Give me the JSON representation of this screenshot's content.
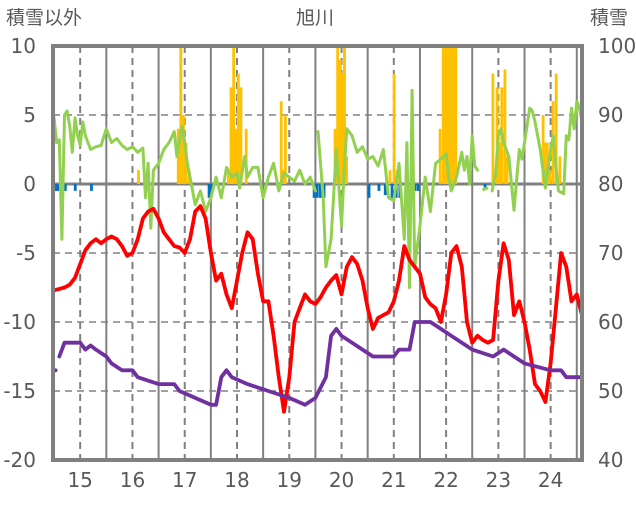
{
  "chart_data": {
    "type": "bar+line",
    "title": "旭川",
    "ylabel_left": "積雪以外",
    "ylabel_right": "積雪",
    "xlim": [
      14.48,
      24.6
    ],
    "ylim_left": [
      -20,
      10
    ],
    "ylim_right": [
      40,
      100
    ],
    "x_ticks": [
      "15",
      "16",
      "17",
      "18",
      "19",
      "20",
      "21",
      "22",
      "23",
      "24"
    ],
    "x_tick_values": [
      15,
      16,
      17,
      18,
      19,
      20,
      21,
      22,
      23,
      24
    ],
    "y_ticks_left": [
      "10",
      "5",
      "0",
      "-5",
      "-10",
      "-15",
      "-20"
    ],
    "y_tick_values_left": [
      10,
      5,
      0,
      -5,
      -10,
      -15,
      -20
    ],
    "y_ticks_right": [
      "100",
      "90",
      "80",
      "70",
      "60",
      "50",
      "40"
    ],
    "grid": true,
    "colors": {
      "red": "#ff0000",
      "purple": "#7030a0",
      "green": "#92d050",
      "orange": "#ffc000",
      "blue": "#0070c0",
      "axis": "#808080"
    },
    "bars_orange": [
      [
        16.11,
        1
      ],
      [
        16.87,
        4
      ],
      [
        16.92,
        10
      ],
      [
        16.97,
        5
      ],
      [
        17.02,
        3
      ],
      [
        17.08,
        1
      ],
      [
        17.83,
        1
      ],
      [
        17.88,
        7
      ],
      [
        17.93,
        10
      ],
      [
        17.98,
        4
      ],
      [
        18.02,
        8
      ],
      [
        18.07,
        7
      ],
      [
        18.17,
        4
      ],
      [
        18.84,
        6
      ],
      [
        18.88,
        1
      ],
      [
        18.92,
        5
      ],
      [
        19.87,
        4
      ],
      [
        19.92,
        10
      ],
      [
        19.97,
        9
      ],
      [
        20.01,
        8
      ],
      [
        20.05,
        10
      ],
      [
        20.09,
        2
      ],
      [
        20.92,
        1
      ],
      [
        21.0,
        8
      ],
      [
        21.06,
        1
      ],
      [
        21.88,
        4
      ],
      [
        21.94,
        10
      ],
      [
        21.98,
        10
      ],
      [
        22.02,
        10
      ],
      [
        22.06,
        10
      ],
      [
        22.1,
        10
      ],
      [
        22.14,
        10
      ],
      [
        22.18,
        10
      ],
      [
        22.89,
        8
      ],
      [
        22.97,
        7
      ],
      [
        23.01,
        3
      ],
      [
        23.06,
        7
      ],
      [
        23.12,
        8.3
      ],
      [
        23.16,
        2
      ],
      [
        23.85,
        5
      ],
      [
        23.89,
        3
      ],
      [
        23.93,
        3
      ],
      [
        23.98,
        1
      ],
      [
        24.04,
        6
      ],
      [
        24.1,
        8
      ],
      [
        24.17,
        2
      ]
    ],
    "bars_blue": [
      [
        14.54,
        -0.5
      ],
      [
        14.58,
        -0.5
      ],
      [
        14.71,
        -0.5
      ],
      [
        14.9,
        -0.5
      ],
      [
        15.21,
        -0.5
      ],
      [
        17.46,
        -1
      ],
      [
        17.5,
        -1
      ],
      [
        19.47,
        -1
      ],
      [
        19.53,
        -1
      ],
      [
        19.59,
        -1
      ],
      [
        19.66,
        -1
      ],
      [
        20.52,
        -1
      ],
      [
        20.71,
        -0.5
      ],
      [
        20.83,
        -0.8
      ],
      [
        20.87,
        -0.8
      ],
      [
        20.96,
        -1
      ],
      [
        21.04,
        -1
      ],
      [
        21.11,
        -1
      ],
      [
        21.4,
        -0.5
      ],
      [
        21.46,
        -0.5
      ],
      [
        22.74,
        -0.3
      ]
    ],
    "series_green": [
      [
        [
          14.5,
          4.8
        ],
        [
          14.55,
          3.0
        ],
        [
          14.6,
          3.2
        ],
        [
          14.65,
          -4
        ],
        [
          14.7,
          5.0
        ],
        [
          14.75,
          5.3
        ],
        [
          14.8,
          4.2
        ],
        [
          14.85,
          2.3
        ],
        [
          14.9,
          4.8
        ],
        [
          14.95,
          3.5
        ],
        [
          15.0,
          2.8
        ],
        [
          15.05,
          4.5
        ],
        [
          15.1,
          3.5
        ],
        [
          15.2,
          2.5
        ],
        [
          15.3,
          2.7
        ],
        [
          15.4,
          2.8
        ],
        [
          15.5,
          4.0
        ],
        [
          15.6,
          3.0
        ],
        [
          15.7,
          3.3
        ],
        [
          15.8,
          2.8
        ],
        [
          15.9,
          2.5
        ],
        [
          16.0,
          2.7
        ],
        [
          16.1,
          2.3
        ],
        [
          16.2,
          2.6
        ],
        [
          16.25,
          -1
        ],
        [
          16.3,
          1.5
        ],
        [
          16.35,
          -3.2
        ],
        [
          16.4,
          1.0
        ],
        [
          16.5,
          1.5
        ],
        [
          16.6,
          2.5
        ],
        [
          16.7,
          3.0
        ],
        [
          16.8,
          3.8
        ],
        [
          16.85,
          2.0
        ],
        [
          16.95,
          4.2
        ],
        [
          17.0,
          3.0
        ],
        [
          17.05,
          1.5
        ],
        [
          17.1,
          0.5
        ],
        [
          17.2,
          -1.5
        ],
        [
          17.3,
          -0.5
        ],
        [
          17.4,
          -2.0
        ],
        [
          17.5,
          -1.0
        ],
        [
          17.6,
          0.5
        ],
        [
          17.7,
          -1.0
        ],
        [
          17.8,
          1.2
        ],
        [
          17.9,
          0.5
        ],
        [
          18.0,
          0.8
        ],
        [
          18.05,
          -0.3
        ],
        [
          18.15,
          2.0
        ],
        [
          18.2,
          0.5
        ],
        [
          18.3,
          1.2
        ],
        [
          18.4,
          1.2
        ],
        [
          18.5,
          -1.0
        ],
        [
          18.6,
          0.5
        ],
        [
          18.7,
          1.5
        ],
        [
          18.8,
          -0.5
        ],
        [
          18.9,
          0.8
        ],
        [
          19.0,
          0.5
        ],
        [
          19.1,
          0.2
        ],
        [
          19.2,
          1.0
        ],
        [
          19.3,
          0
        ],
        [
          19.4,
          0.5
        ],
        [
          19.5,
          -0.5
        ]
      ],
      [
        [
          19.55,
          3.8
        ],
        [
          19.65,
          -1
        ],
        [
          19.7,
          -6
        ],
        [
          19.8,
          -4
        ],
        [
          19.9,
          2.5
        ],
        [
          20.0,
          -3
        ],
        [
          20.05,
          1
        ],
        [
          20.1,
          4.0
        ],
        [
          20.2,
          3.5
        ],
        [
          20.3,
          2.3
        ],
        [
          20.4,
          2.7
        ],
        [
          20.5,
          1.8
        ],
        [
          20.6,
          2.0
        ],
        [
          20.7,
          1.3
        ],
        [
          20.8,
          2.5
        ],
        [
          20.9,
          -1.0
        ],
        [
          21.0,
          -1.2
        ],
        [
          21.1,
          1.5
        ],
        [
          21.2,
          -4
        ],
        [
          21.25,
          3
        ],
        [
          21.3,
          -7.5
        ],
        [
          21.35,
          6.8
        ],
        [
          21.4,
          -6
        ],
        [
          21.5,
          -3
        ],
        [
          21.6,
          0.5
        ],
        [
          21.7,
          -2
        ],
        [
          21.8,
          1.5
        ],
        [
          21.9,
          1.8
        ],
        [
          22.0,
          2.2
        ],
        [
          22.05,
          0.5
        ],
        [
          22.1,
          -0.5
        ],
        [
          22.2,
          0.5
        ],
        [
          22.3,
          2.3
        ],
        [
          22.35,
          1.0
        ],
        [
          22.4,
          2.0
        ],
        [
          22.45,
          0
        ],
        [
          22.5,
          3.5
        ],
        [
          22.55,
          1.3
        ],
        [
          22.6,
          1.0
        ]
      ],
      [
        [
          22.72,
          -0.4
        ],
        [
          22.78,
          -0.3
        ]
      ],
      [
        [
          22.88,
          -0.5
        ],
        [
          22.95,
          0.8
        ],
        [
          23.0,
          3.5
        ],
        [
          23.05,
          4.0
        ],
        [
          23.1,
          3.0
        ],
        [
          23.2,
          2.0
        ],
        [
          23.3,
          -1.9
        ],
        [
          23.4,
          2.5
        ],
        [
          23.45,
          1.8
        ],
        [
          23.5,
          3.0
        ],
        [
          23.6,
          5.5
        ],
        [
          23.65,
          5.3
        ],
        [
          23.7,
          4.5
        ],
        [
          23.8,
          2.5
        ],
        [
          23.9,
          -0.3
        ],
        [
          24.0,
          2.5
        ],
        [
          24.05,
          3.5
        ],
        [
          24.1,
          1.3
        ],
        [
          24.15,
          -0.5
        ],
        [
          24.25,
          -0.7
        ],
        [
          24.3,
          3.5
        ],
        [
          24.35,
          3.2
        ],
        [
          24.4,
          5.5
        ],
        [
          24.45,
          4.0
        ],
        [
          24.5,
          6.0
        ],
        [
          24.55,
          5.5
        ],
        [
          24.6,
          4.5
        ]
      ]
    ],
    "series_red": [
      [
        [
          14.5,
          -7.7
        ],
        [
          14.6,
          -7.6
        ],
        [
          14.7,
          -7.5
        ],
        [
          14.8,
          -7.3
        ],
        [
          14.9,
          -6.8
        ],
        [
          15.0,
          -5.8
        ],
        [
          15.1,
          -4.8
        ],
        [
          15.2,
          -4.3
        ],
        [
          15.3,
          -4.0
        ],
        [
          15.4,
          -4.3
        ],
        [
          15.5,
          -4.0
        ],
        [
          15.6,
          -3.8
        ],
        [
          15.7,
          -4.0
        ],
        [
          15.8,
          -4.5
        ],
        [
          15.9,
          -5.2
        ],
        [
          16.0,
          -5.0
        ],
        [
          16.1,
          -4.0
        ],
        [
          16.2,
          -2.5
        ],
        [
          16.3,
          -2.0
        ],
        [
          16.4,
          -1.8
        ],
        [
          16.5,
          -2.5
        ],
        [
          16.6,
          -3.5
        ],
        [
          16.7,
          -4.0
        ],
        [
          16.8,
          -4.5
        ],
        [
          16.9,
          -4.6
        ],
        [
          17.0,
          -5.0
        ],
        [
          17.1,
          -4.0
        ],
        [
          17.2,
          -2.0
        ],
        [
          17.3,
          -1.6
        ],
        [
          17.4,
          -2.5
        ],
        [
          17.5,
          -5.0
        ],
        [
          17.6,
          -7.0
        ],
        [
          17.7,
          -6.5
        ],
        [
          17.8,
          -8.0
        ],
        [
          17.9,
          -9.0
        ],
        [
          18.0,
          -7.0
        ],
        [
          18.1,
          -5.0
        ],
        [
          18.2,
          -3.5
        ],
        [
          18.3,
          -4.0
        ],
        [
          18.4,
          -6.5
        ],
        [
          18.5,
          -8.5
        ],
        [
          18.6,
          -8.5
        ],
        [
          18.7,
          -11
        ],
        [
          18.8,
          -14
        ],
        [
          18.9,
          -16.5
        ],
        [
          19.0,
          -14
        ],
        [
          19.1,
          -10
        ],
        [
          19.2,
          -9
        ],
        [
          19.3,
          -8
        ],
        [
          19.4,
          -8.5
        ],
        [
          19.5,
          -8.7
        ],
        [
          19.6,
          -8.2
        ],
        [
          19.7,
          -7.5
        ],
        [
          19.8,
          -7
        ],
        [
          19.9,
          -6.6
        ],
        [
          20.0,
          -8
        ],
        [
          20.1,
          -6
        ],
        [
          20.2,
          -5.3
        ],
        [
          20.3,
          -5.8
        ],
        [
          20.4,
          -7
        ],
        [
          20.5,
          -9
        ],
        [
          20.6,
          -10.5
        ],
        [
          20.7,
          -9.7
        ],
        [
          20.8,
          -9.5
        ],
        [
          20.9,
          -9.3
        ],
        [
          21.0,
          -8.5
        ],
        [
          21.1,
          -7
        ],
        [
          21.2,
          -4.5
        ],
        [
          21.3,
          -5.5
        ],
        [
          21.4,
          -6
        ],
        [
          21.5,
          -6.5
        ],
        [
          21.6,
          -8.2
        ],
        [
          21.7,
          -8.7
        ],
        [
          21.8,
          -9
        ],
        [
          21.9,
          -10
        ],
        [
          22.0,
          -8
        ],
        [
          22.1,
          -5
        ],
        [
          22.2,
          -4.5
        ],
        [
          22.3,
          -6
        ],
        [
          22.4,
          -10
        ],
        [
          22.5,
          -11.5
        ],
        [
          22.6,
          -11
        ],
        [
          22.7,
          -11.3
        ],
        [
          22.8,
          -11.5
        ],
        [
          22.9,
          -11.3
        ],
        [
          23.0,
          -7
        ],
        [
          23.1,
          -4.3
        ],
        [
          23.2,
          -5.5
        ],
        [
          23.3,
          -9.5
        ],
        [
          23.4,
          -8.5
        ],
        [
          23.5,
          -10
        ],
        [
          23.6,
          -12
        ],
        [
          23.7,
          -14.5
        ],
        [
          23.8,
          -15
        ],
        [
          23.9,
          -15.8
        ],
        [
          24.0,
          -13
        ],
        [
          24.1,
          -9
        ],
        [
          24.2,
          -5
        ],
        [
          24.3,
          -6
        ],
        [
          24.4,
          -8.5
        ],
        [
          24.5,
          -8
        ],
        [
          24.6,
          -9.5
        ]
      ]
    ],
    "series_purple_right_axis": [
      [
        [
          14.48,
          53
        ],
        [
          14.53,
          53
        ]
      ],
      [
        [
          14.6,
          55
        ],
        [
          14.7,
          57
        ],
        [
          15.0,
          57
        ],
        [
          15.1,
          56
        ],
        [
          15.2,
          56.6
        ],
        [
          15.3,
          56
        ],
        [
          15.5,
          55
        ],
        [
          15.6,
          54
        ],
        [
          15.8,
          53
        ],
        [
          16.0,
          53
        ],
        [
          16.1,
          52
        ],
        [
          16.5,
          51
        ],
        [
          16.8,
          51
        ],
        [
          16.9,
          50
        ],
        [
          17.2,
          49
        ],
        [
          17.5,
          48
        ],
        [
          17.6,
          48
        ],
        [
          17.7,
          52
        ],
        [
          17.8,
          53
        ],
        [
          17.9,
          52
        ],
        [
          18.2,
          51
        ],
        [
          18.6,
          50
        ],
        [
          19.0,
          49
        ],
        [
          19.3,
          48
        ],
        [
          19.5,
          49
        ],
        [
          19.7,
          52
        ],
        [
          19.8,
          58
        ],
        [
          19.9,
          59
        ],
        [
          20.0,
          58
        ],
        [
          20.2,
          57
        ],
        [
          20.4,
          56
        ],
        [
          20.6,
          55
        ],
        [
          21.0,
          55
        ],
        [
          21.1,
          56
        ],
        [
          21.3,
          56
        ],
        [
          21.4,
          60
        ],
        [
          21.7,
          60
        ],
        [
          21.9,
          59
        ],
        [
          22.1,
          58
        ],
        [
          22.3,
          57
        ],
        [
          22.5,
          56
        ],
        [
          22.9,
          55
        ],
        [
          23.1,
          56
        ],
        [
          23.3,
          55
        ],
        [
          23.5,
          54
        ],
        [
          24.0,
          53
        ],
        [
          24.2,
          53
        ],
        [
          24.3,
          52
        ],
        [
          24.6,
          52
        ]
      ]
    ]
  }
}
